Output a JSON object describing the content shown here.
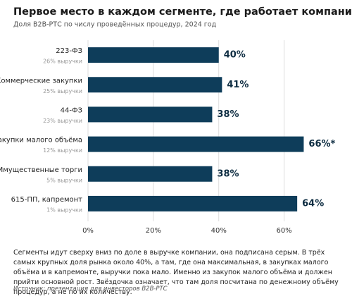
{
  "chart_data": {
    "type": "hbar",
    "title": "Первое место в каждом сегменте, где работает компания",
    "subtitle": "Доля B2B-РТС по числу проведённых процедур, 2024 год",
    "categories": [
      "223-ФЗ",
      "Коммерческие закупки",
      "44-ФЗ",
      "Закупки малого объёма",
      "Имущественные торги",
      "615-ПП, капремонт"
    ],
    "sublabels": [
      "26% выручки",
      "25% выручки",
      "23% выручки",
      "12% выручки",
      "5% выручки",
      "1% выручки"
    ],
    "values": [
      40,
      41,
      38,
      66,
      38,
      64
    ],
    "value_labels": [
      "40%",
      "41%",
      "38%",
      "66%*",
      "38%",
      "64%"
    ],
    "color": "#0e3d5a",
    "xlim": [
      0,
      70
    ],
    "xticks": [
      {
        "value": 0,
        "label": "0%"
      },
      {
        "value": 20,
        "label": "20%"
      },
      {
        "value": 40,
        "label": "40%"
      },
      {
        "value": 60,
        "label": "60%"
      }
    ],
    "grid": true,
    "note": "Сегменты идут сверху вниз по доле в выручке компании, она подписана серым. В трёх самых крупных доля рынка около 40%, а там, где она максимальная, в закупках малого объёма и в капремонте, выручки пока мало. Именно из закупок малого объёма и должен прийти основной рост. Звёздочка означает, что там доля посчитана по денежному объёму процедур, а не по их количеству.",
    "source": "Источник: презентация для инвесторов B2B-РТС"
  }
}
